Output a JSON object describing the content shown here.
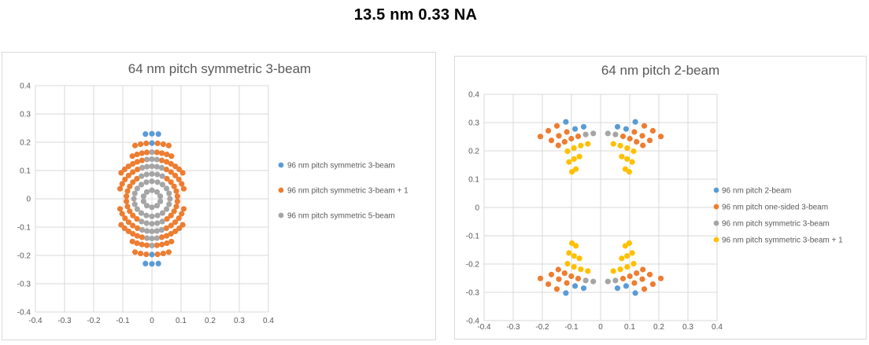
{
  "page_title": "13.5 nm 0.33 NA",
  "palette": {
    "blue": "#5B9BD5",
    "orange": "#ED7D31",
    "gray": "#A5A5A5",
    "yellow": "#FFC000",
    "gridline": "#D9D9D9",
    "axis_text": "#595959",
    "title_text": "#595959",
    "main_title_text": "#000000"
  },
  "angle_convention": "degrees measured from +y axis; point = (r*sin(a), r*cos(a)); mirror_x reflects across y-axis, mirror_y reflects across x-axis",
  "chart_data": [
    {
      "type": "scatter",
      "title": "64 nm pitch symmetric 3-beam",
      "xlabel": "",
      "ylabel": "",
      "xlim": [
        -0.4,
        0.4
      ],
      "ylim": [
        -0.4,
        0.4
      ],
      "grid": true,
      "legend_position": "right",
      "x_tick_labels": [
        "-0.4",
        "-0.3",
        "-0.2",
        "-0.1",
        "0",
        "0.1",
        "0.2",
        "0.3",
        "0.4"
      ],
      "y_tick_labels": [
        "-0.4",
        "-0.3",
        "-0.2",
        "-0.1",
        "0",
        "0.1",
        "0.2",
        "0.3",
        "0.4"
      ],
      "series": [
        {
          "name": "96 nm pitch symmetric 3-beam",
          "color": "#5B9BD5",
          "arcs": [
            {
              "r": 0.23,
              "a_start": 0,
              "a_end": 0,
              "n": 1,
              "mirror_x": false,
              "mirror_y": true
            },
            {
              "r": 0.23,
              "a_start": 5.5,
              "a_end": 5.5,
              "n": 1,
              "mirror_x": true,
              "mirror_y": true
            },
            {
              "r": 0.197,
              "a_start": 0,
              "a_end": 0,
              "n": 1,
              "mirror_x": false,
              "mirror_y": true
            }
          ]
        },
        {
          "name": "96 nm pitch symmetric 3-beam + 1",
          "color": "#ED7D31",
          "arcs": [
            {
              "r": 0.197,
              "a_start": 5.7,
              "a_end": 17.1,
              "n": 3,
              "mirror_x": true,
              "mirror_y": true
            },
            {
              "r": 0.165,
              "a_start": 6,
              "a_end": 24,
              "n": 4,
              "mirror_x": true,
              "mirror_y": true
            },
            {
              "r": 0.14,
              "a_start": 14,
              "a_end": 49,
              "n": 6,
              "mirror_x": true,
              "mirror_y": true
            },
            {
              "r": 0.115,
              "a_start": 25.5,
              "a_end": 72,
              "n": 6,
              "mirror_x": true,
              "mirror_y": true
            },
            {
              "r": 0.088,
              "a_start": 36,
              "a_end": 144,
              "n": 10,
              "mirror_x": true,
              "mirror_y": false
            }
          ]
        },
        {
          "name": "96 nm pitch symmetric 5-beam",
          "color": "#A5A5A5",
          "arcs": [
            {
              "r": 0.165,
              "a_start": 0,
              "a_end": 0,
              "n": 1,
              "mirror_x": false,
              "mirror_y": true
            },
            {
              "r": 0.14,
              "a_start": 0,
              "a_end": 0,
              "n": 1,
              "mirror_x": false,
              "mirror_y": true
            },
            {
              "r": 0.14,
              "a_start": 7,
              "a_end": 7,
              "n": 1,
              "mirror_x": true,
              "mirror_y": true
            },
            {
              "r": 0.115,
              "a_start": 0,
              "a_end": 0,
              "n": 1,
              "mirror_x": false,
              "mirror_y": true
            },
            {
              "r": 0.115,
              "a_start": 8.5,
              "a_end": 17,
              "n": 2,
              "mirror_x": true,
              "mirror_y": true
            },
            {
              "r": 0.088,
              "a_start": 0,
              "a_end": 0,
              "n": 1,
              "mirror_x": false,
              "mirror_y": true
            },
            {
              "r": 0.088,
              "a_start": 12,
              "a_end": 24,
              "n": 2,
              "mirror_x": true,
              "mirror_y": true
            },
            {
              "r": 0.062,
              "full": true,
              "n": 20
            },
            {
              "r": 0.03,
              "full": true,
              "n": 10
            }
          ]
        }
      ]
    },
    {
      "type": "scatter",
      "title": "64 nm pitch 2-beam",
      "xlabel": "",
      "ylabel": "",
      "xlim": [
        -0.4,
        0.4
      ],
      "ylim": [
        -0.4,
        0.4
      ],
      "grid": true,
      "legend_position": "right",
      "x_tick_labels": [
        "-0.4",
        "-0.3",
        "-0.2",
        "-0.1",
        "0",
        "0.1",
        "0.2",
        "0.3",
        "0.4"
      ],
      "y_tick_labels": [
        "-0.4",
        "-0.3",
        "-0.2",
        "-0.1",
        "0",
        "0.1",
        "0.2",
        "0.3",
        "0.4"
      ],
      "series": [
        {
          "name": "96 nm pitch 2-beam",
          "color": "#5B9BD5",
          "arcs": [
            {
              "r": 0.291,
              "a_start": 11.5,
              "a_end": 17.5,
              "n": 2,
              "mirror_x": true,
              "mirror_y": true
            },
            {
              "r": 0.325,
              "a_start": 21.5,
              "a_end": 21.5,
              "n": 1,
              "mirror_x": true,
              "mirror_y": true
            }
          ]
        },
        {
          "name": "96 nm pitch one-sided 3-beam",
          "color": "#ED7D31",
          "arcs": [
            {
              "r": 0.325,
              "a_start": 27.5,
              "a_end": 39.5,
              "n": 3,
              "mirror_x": true,
              "mirror_y": true
            },
            {
              "r": 0.291,
              "a_start": 23.5,
              "a_end": 35.5,
              "n": 3,
              "mirror_x": true,
              "mirror_y": true
            },
            {
              "r": 0.263,
              "a_start": 17,
              "a_end": 33.5,
              "n": 4,
              "mirror_x": true,
              "mirror_y": true
            }
          ]
        },
        {
          "name": "96 nm pitch symmetric 3-beam",
          "color": "#A5A5A5",
          "arcs": [
            {
              "r": 0.263,
              "a_start": 5.5,
              "a_end": 11.2,
              "n": 2,
              "mirror_x": true,
              "mirror_y": true
            }
          ]
        },
        {
          "name": "96 nm pitch symmetric 3-beam + 1",
          "color": "#FFC000",
          "arcs": [
            {
              "r": 0.229,
              "a_start": 11,
              "a_end": 29.75,
              "n": 4,
              "mirror_x": true,
              "mirror_y": true
            },
            {
              "r": 0.194,
              "a_start": 22,
              "a_end": 34,
              "n": 3,
              "mirror_x": true,
              "mirror_y": true
            },
            {
              "r": 0.16,
              "a_start": 32,
              "a_end": 38,
              "n": 2,
              "mirror_x": true,
              "mirror_y": true
            }
          ]
        }
      ]
    }
  ]
}
